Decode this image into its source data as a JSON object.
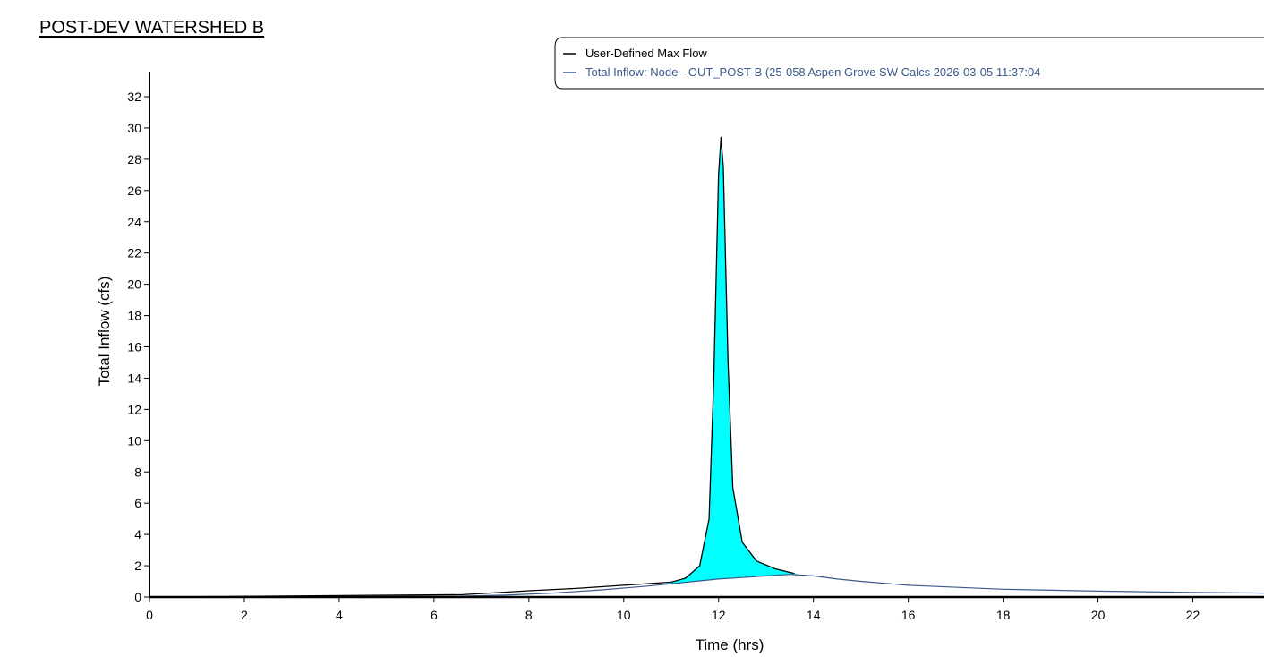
{
  "page_title": "POST-DEV WATERSHED B",
  "colors": {
    "max_flow_line": "#000000",
    "inflow_line": "#3a5a8a",
    "exceedance_fill": "#00ffff",
    "axis": "#000000"
  },
  "chart_data": {
    "type": "line",
    "title": "POST-DEV WATERSHED B",
    "xlabel": "Time (hrs)",
    "ylabel": "Total Inflow (cfs)",
    "xlim": [
      0,
      23.5
    ],
    "ylim": [
      0,
      33
    ],
    "x_ticks": [
      0,
      2,
      4,
      6,
      8,
      10,
      12,
      14,
      16,
      18,
      20,
      22
    ],
    "y_ticks": [
      0,
      2,
      4,
      6,
      8,
      10,
      12,
      14,
      16,
      18,
      20,
      22,
      24,
      26,
      28,
      30,
      32
    ],
    "grid": false,
    "legend_position": "top-right",
    "fill_between_series": true,
    "series": [
      {
        "name": "User-Defined Max Flow",
        "color": "#000000",
        "x": [
          0,
          6.6,
          8,
          9,
          10,
          11,
          11.3,
          11.6,
          11.8,
          11.9,
          12.0,
          12.05,
          12.1,
          12.2,
          12.3,
          12.5,
          12.8,
          13.2,
          13.6
        ],
        "y": [
          0,
          0.15,
          0.4,
          0.55,
          0.75,
          0.95,
          1.2,
          2.0,
          5.0,
          14.0,
          27.0,
          29.4,
          27.5,
          15.0,
          7.0,
          3.5,
          2.3,
          1.8,
          1.5
        ]
      },
      {
        "name": "Total Inflow: Node - OUT_POST-B (25-058 Aspen Grove SW Calcs 2026-03-05 11:37:04",
        "color": "#3a5a8a",
        "x": [
          0,
          6.5,
          7.5,
          8.5,
          9.5,
          10.5,
          11.0,
          11.5,
          12.0,
          12.5,
          13.0,
          13.5,
          14.0,
          14.5,
          15.0,
          16.0,
          18.0,
          20.0,
          22.0,
          23.5
        ],
        "y": [
          0,
          0.05,
          0.12,
          0.25,
          0.45,
          0.7,
          0.85,
          1.0,
          1.15,
          1.25,
          1.35,
          1.45,
          1.35,
          1.15,
          1.0,
          0.75,
          0.5,
          0.38,
          0.3,
          0.25
        ]
      }
    ]
  }
}
